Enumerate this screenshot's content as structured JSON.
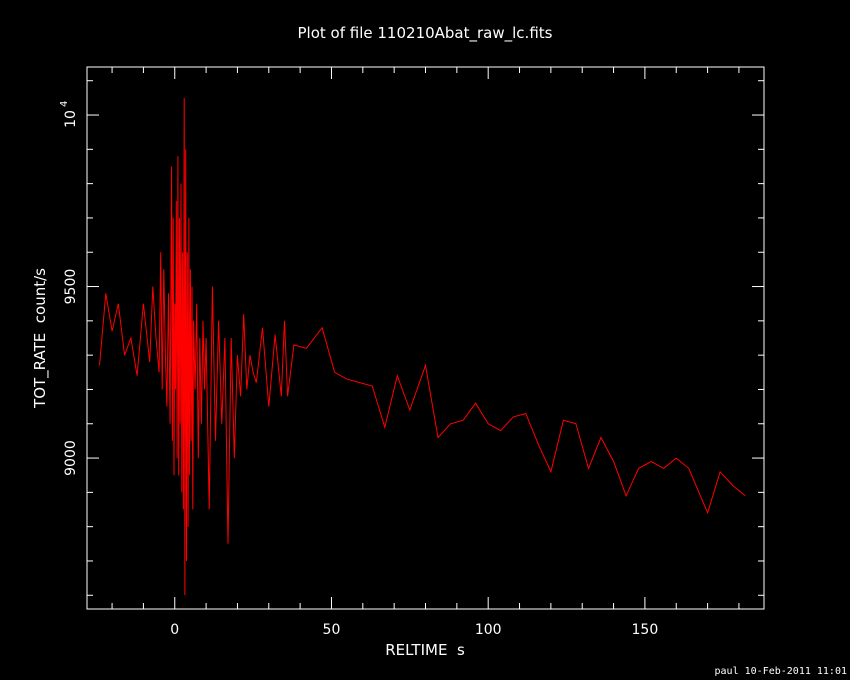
{
  "chart_data": {
    "type": "line",
    "title": "Plot of file 110210Abat_raw_lc.fits",
    "xlabel": "RELTIME  s",
    "ylabel": "TOT_RATE  count/s",
    "xlim": [
      -28,
      188
    ],
    "ylim": [
      8560,
      10140
    ],
    "x_ticks": [
      0,
      50,
      100,
      150
    ],
    "y_ticks": [
      9000,
      9500
    ],
    "y_top_tick": {
      "base": "10",
      "exp": "4",
      "value": 10000
    },
    "grid": false,
    "color": "#ff0000",
    "series": [
      {
        "x": [
          -24,
          -22,
          -20,
          -18,
          -16,
          -14,
          -12,
          -10,
          -8,
          -7,
          -6,
          -5,
          -4.5,
          -4,
          -3.5,
          -3,
          -2.5,
          -2,
          -1.5,
          -1,
          -0.75,
          -0.5,
          -0.25,
          0,
          0.25,
          0.5,
          0.75,
          1,
          1.25,
          1.5,
          1.75,
          2,
          2.25,
          2.5,
          2.75,
          3,
          3.25,
          3.5,
          3.75,
          4,
          4.25,
          4.5,
          4.75,
          5,
          5.25,
          5.5,
          5.75,
          6,
          6.5,
          7,
          7.5,
          8,
          8.5,
          9,
          9.5,
          10,
          11,
          12,
          13,
          14,
          15,
          16,
          17,
          18,
          19,
          20,
          21,
          22,
          23,
          24,
          25,
          26,
          28,
          30,
          32,
          34,
          35,
          36,
          38,
          42,
          47,
          51,
          55,
          63,
          67,
          71,
          75,
          80,
          84,
          88,
          92,
          96,
          100,
          104,
          108,
          112,
          116,
          120,
          124,
          128,
          132,
          136,
          140,
          144,
          148,
          152,
          156,
          160,
          164,
          170,
          174,
          178,
          182
        ],
        "y": [
          9270,
          9480,
          9370,
          9450,
          9300,
          9350,
          9240,
          9450,
          9280,
          9500,
          9350,
          9250,
          9600,
          9200,
          9550,
          9300,
          9150,
          9480,
          9100,
          9850,
          9050,
          9700,
          8950,
          9450,
          9200,
          9750,
          9000,
          9880,
          8950,
          9700,
          9100,
          9800,
          8900,
          9600,
          8850,
          10050,
          8600,
          9900,
          8700,
          9600,
          8800,
          9700,
          8950,
          9550,
          9050,
          9500,
          8850,
          9400,
          9200,
          9450,
          9000,
          9350,
          9100,
          9400,
          9200,
          9350,
          8850,
          9500,
          9050,
          9400,
          9100,
          9350,
          8750,
          9350,
          9000,
          9300,
          9180,
          9420,
          9200,
          9300,
          9250,
          9220,
          9380,
          9150,
          9360,
          9180,
          9400,
          9180,
          9330,
          9320,
          9380,
          9250,
          9230,
          9210,
          9090,
          9240,
          9140,
          9270,
          9060,
          9100,
          9110,
          9160,
          9100,
          9080,
          9120,
          9130,
          9040,
          8960,
          9110,
          9100,
          8970,
          9060,
          8990,
          8890,
          8970,
          8990,
          8970,
          9000,
          8970,
          8840,
          8960,
          8920,
          8890
        ]
      }
    ]
  },
  "footer": {
    "user": "paul",
    "timestamp": "10-Feb-2011 11:01"
  }
}
